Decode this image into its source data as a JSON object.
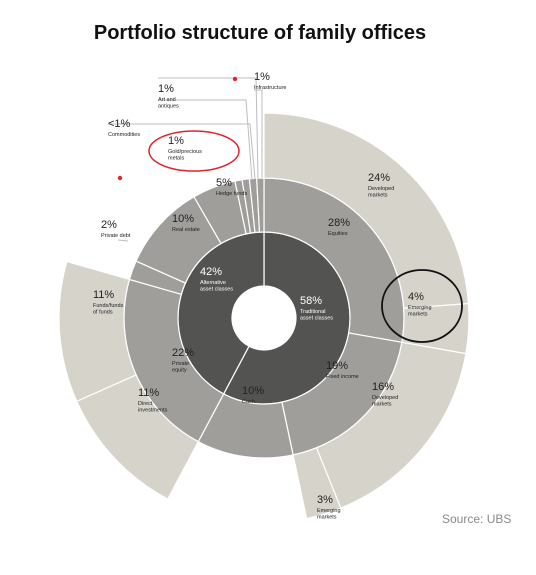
{
  "title": "Portfolio structure of family offices",
  "source": "Source: UBS",
  "colors": {
    "inner": "#535352",
    "middle": "#9f9e9b",
    "outer": "#d6d3cb",
    "leader": "#bdbdbd",
    "annotation_red": "#e0242a",
    "annotation_black": "#111111"
  },
  "chart_data": {
    "type": "sunburst",
    "levels": [
      {
        "ring": "inner",
        "segments": [
          {
            "value": "58%",
            "label": "Traditional asset classes"
          },
          {
            "value": "42%",
            "label": "Alternative asset classes"
          }
        ]
      },
      {
        "ring": "middle",
        "segments": [
          {
            "parent": "Traditional asset classes",
            "value": "28%",
            "label": "Equities"
          },
          {
            "parent": "Traditional asset classes",
            "value": "19%",
            "label": "Fixed income"
          },
          {
            "parent": "Traditional asset classes",
            "value": "10%",
            "label": "Cash"
          },
          {
            "parent": "Alternative asset classes",
            "value": "22%",
            "label": "Private equity"
          },
          {
            "parent": "Alternative asset classes",
            "value": "2%",
            "label": "Private debt"
          },
          {
            "parent": "Alternative asset classes",
            "value": "10%",
            "label": "Real estate"
          },
          {
            "parent": "Alternative asset classes",
            "value": "5%",
            "label": "Hedge funds"
          },
          {
            "parent": "Alternative asset classes",
            "value": "1%",
            "label": "Gold/precious metals"
          },
          {
            "parent": "Alternative asset classes",
            "value": "<1%",
            "label": "Commodities"
          },
          {
            "parent": "Alternative asset classes",
            "value": "1%",
            "label": "Art and antiques"
          },
          {
            "parent": "Alternative asset classes",
            "value": "1%",
            "label": "Infrastructure"
          }
        ]
      },
      {
        "ring": "outer",
        "segments": [
          {
            "parent": "Equities",
            "value": "24%",
            "label": "Developed markets"
          },
          {
            "parent": "Equities",
            "value": "4%",
            "label": "Emerging markets"
          },
          {
            "parent": "Fixed income",
            "value": "16%",
            "label": "Developed markets"
          },
          {
            "parent": "Fixed income",
            "value": "3%",
            "label": "Emerging markets"
          },
          {
            "parent": "Private equity",
            "value": "11%",
            "label": "Funds/funds of funds"
          },
          {
            "parent": "Private equity",
            "value": "11%",
            "label": "Direct investments"
          }
        ]
      }
    ],
    "annotations": [
      {
        "shape": "circle",
        "color": "red",
        "target": "Gold/precious metals"
      },
      {
        "shape": "circle",
        "color": "black",
        "target": "Emerging markets"
      }
    ]
  }
}
